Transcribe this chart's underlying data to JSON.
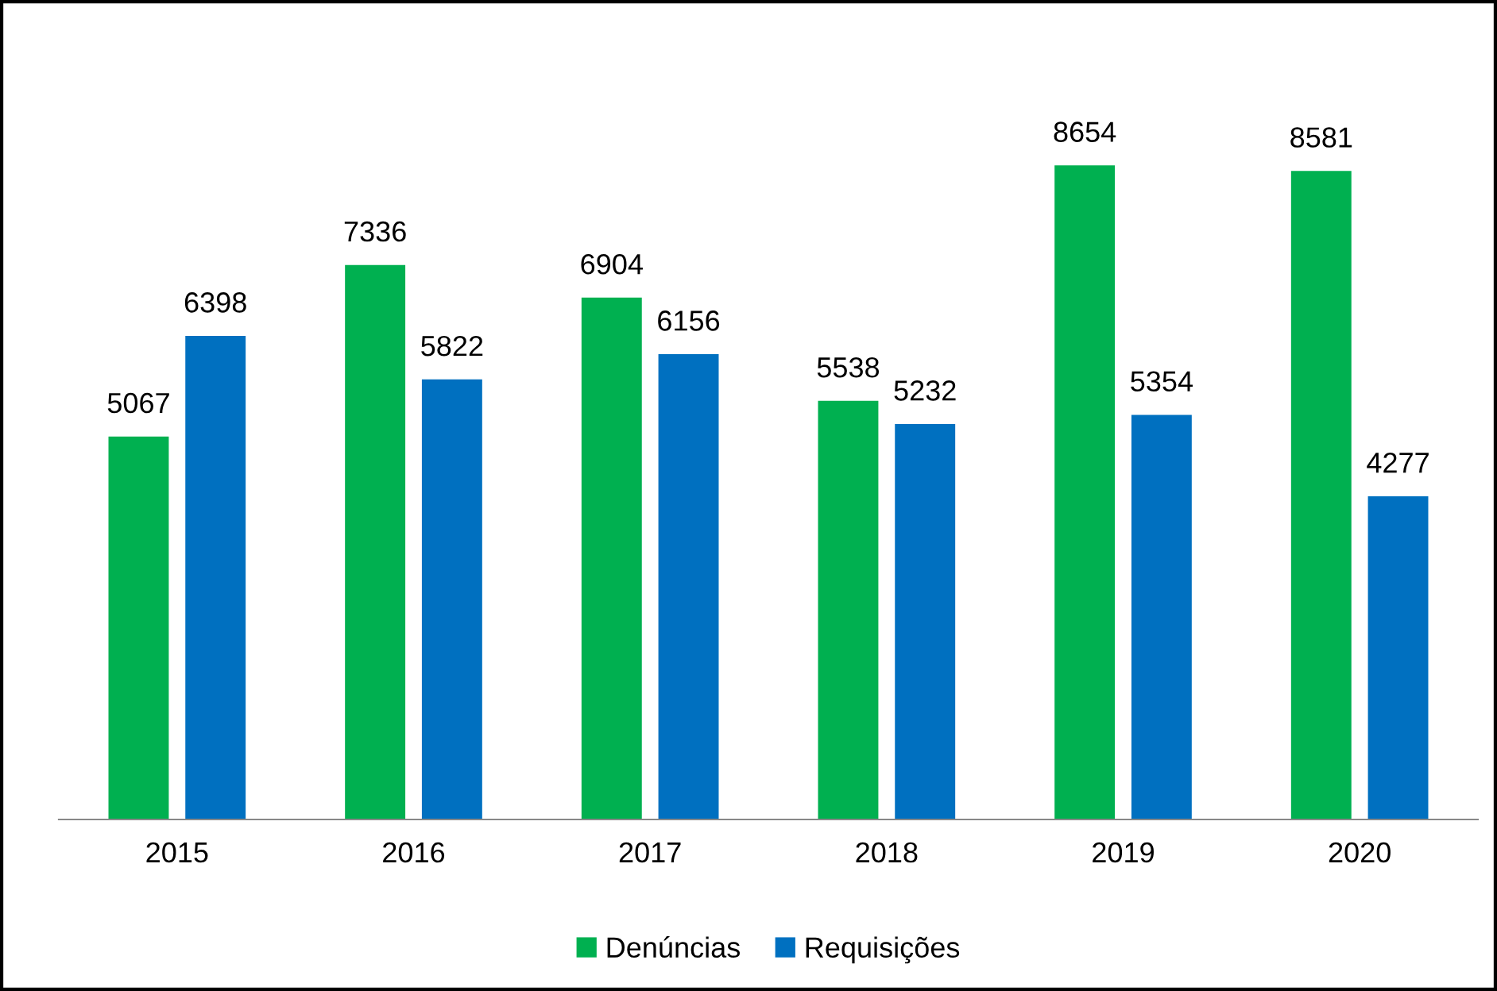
{
  "chart_data": {
    "type": "bar",
    "categories": [
      "2015",
      "2016",
      "2017",
      "2018",
      "2019",
      "2020"
    ],
    "series": [
      {
        "name": "Denúncias",
        "color": "#00b050",
        "values": [
          5067,
          7336,
          6904,
          5538,
          8654,
          8581
        ]
      },
      {
        "name": "Requisições",
        "color": "#0070c0",
        "values": [
          6398,
          5822,
          6156,
          5232,
          5354,
          4277
        ]
      }
    ],
    "data_labels": true,
    "legend": "bottom",
    "grid": false
  }
}
